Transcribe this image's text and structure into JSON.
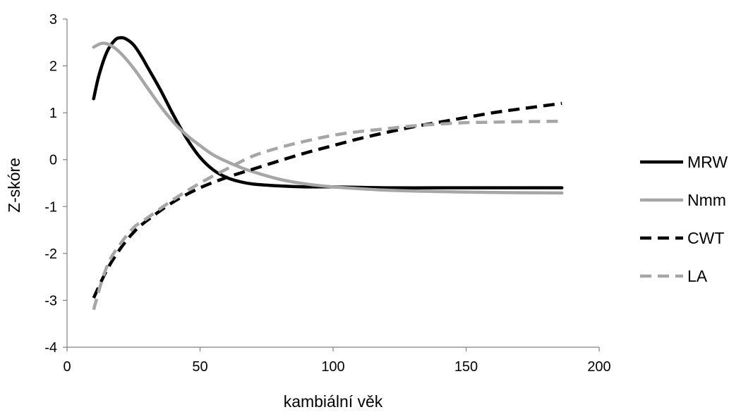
{
  "chart_data": {
    "type": "line",
    "title": "",
    "xlabel": "kambiální věk",
    "ylabel": "Z-skóre",
    "xlim": [
      0,
      200
    ],
    "ylim": [
      -4,
      3
    ],
    "xticks": [
      0,
      50,
      100,
      150,
      200
    ],
    "yticks": [
      -4,
      -3,
      -2,
      -1,
      0,
      1,
      2,
      3
    ],
    "grid": false,
    "legend_position": "right",
    "series": [
      {
        "name": "MRW",
        "color": "#000000",
        "dash": "solid",
        "x": [
          10,
          12,
          15,
          18,
          20,
          22,
          25,
          28,
          30,
          35,
          40,
          45,
          50,
          55,
          60,
          65,
          70,
          80,
          90,
          100,
          120,
          140,
          160,
          186
        ],
        "y": [
          1.3,
          1.8,
          2.3,
          2.55,
          2.6,
          2.58,
          2.45,
          2.2,
          2.0,
          1.5,
          0.95,
          0.45,
          0.05,
          -0.22,
          -0.38,
          -0.47,
          -0.52,
          -0.56,
          -0.58,
          -0.58,
          -0.6,
          -0.6,
          -0.6,
          -0.6
        ]
      },
      {
        "name": "Nmm",
        "color": "#a6a6a6",
        "dash": "solid",
        "x": [
          10,
          13,
          16,
          20,
          25,
          30,
          35,
          40,
          45,
          50,
          55,
          60,
          65,
          70,
          80,
          90,
          100,
          120,
          140,
          160,
          186
        ],
        "y": [
          2.4,
          2.48,
          2.45,
          2.28,
          1.95,
          1.55,
          1.15,
          0.8,
          0.52,
          0.3,
          0.1,
          -0.04,
          -0.16,
          -0.26,
          -0.42,
          -0.52,
          -0.58,
          -0.65,
          -0.68,
          -0.7,
          -0.71
        ]
      },
      {
        "name": "CWT",
        "color": "#000000",
        "dash": "dashed",
        "x": [
          10,
          15,
          20,
          25,
          30,
          40,
          50,
          60,
          70,
          80,
          90,
          100,
          110,
          120,
          130,
          140,
          150,
          160,
          170,
          186
        ],
        "y": [
          -2.95,
          -2.35,
          -1.9,
          -1.55,
          -1.3,
          -0.9,
          -0.6,
          -0.38,
          -0.2,
          -0.02,
          0.15,
          0.3,
          0.45,
          0.58,
          0.7,
          0.8,
          0.9,
          1.0,
          1.08,
          1.2
        ]
      },
      {
        "name": "LA",
        "color": "#a6a6a6",
        "dash": "dashed",
        "x": [
          10,
          13,
          16,
          20,
          25,
          30,
          40,
          50,
          60,
          70,
          80,
          90,
          100,
          110,
          120,
          130,
          140,
          150,
          160,
          170,
          186
        ],
        "y": [
          -3.2,
          -2.6,
          -2.15,
          -1.8,
          -1.45,
          -1.25,
          -0.85,
          -0.5,
          -0.2,
          0.08,
          0.26,
          0.4,
          0.52,
          0.6,
          0.66,
          0.72,
          0.76,
          0.79,
          0.8,
          0.81,
          0.82
        ]
      }
    ]
  }
}
